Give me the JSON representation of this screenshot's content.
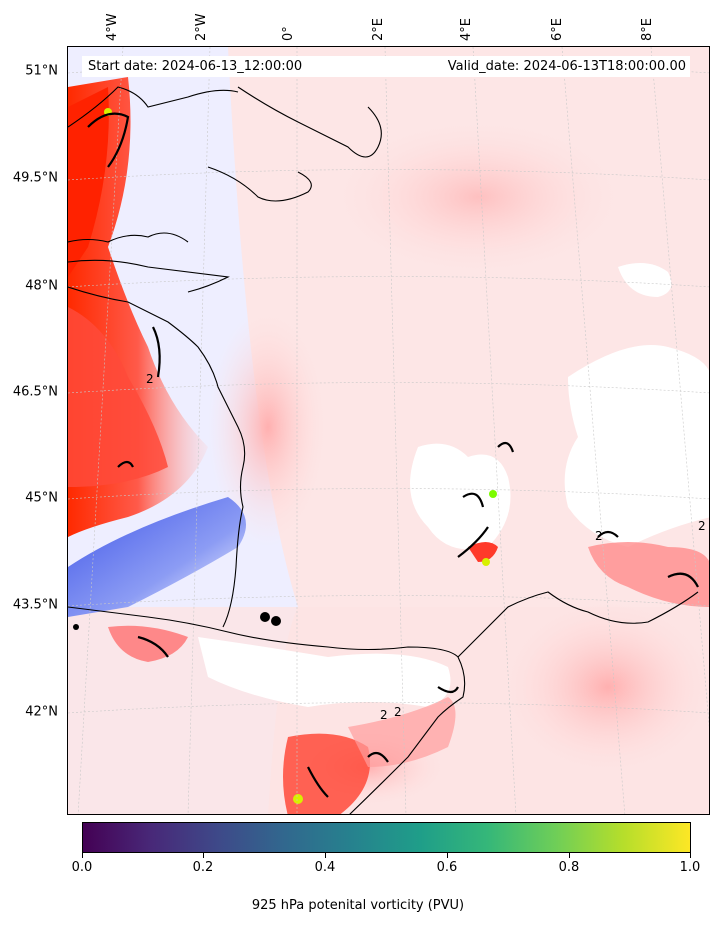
{
  "map": {
    "start_date": "Start date: 2024-06-13_12:00:00",
    "valid_date": "Valid_date: 2024-06-13T18:00:00.00",
    "lat_labels": [
      "51°N",
      "49.5°N",
      "48°N",
      "46.5°N",
      "45°N",
      "43.5°N",
      "42°N"
    ],
    "lon_labels": [
      "4°W",
      "2°W",
      "0°",
      "2°E",
      "4°E",
      "6°E",
      "8°E"
    ],
    "contour_label": "2",
    "colors": {
      "land_light": "#fde2e2",
      "pv_high": "#ff2a00",
      "pv_mid": "#ff8c8c",
      "pv_negative": "#5a6cf0",
      "masked": "#ffffff",
      "coast": "#000000"
    }
  },
  "colorbar": {
    "title": "925 hPa potenital vorticity (PVU)",
    "ticks": [
      "0.0",
      "0.2",
      "0.4",
      "0.6",
      "0.8",
      "1.0"
    ],
    "colormap": "viridis",
    "range": [
      0.0,
      1.0
    ]
  }
}
